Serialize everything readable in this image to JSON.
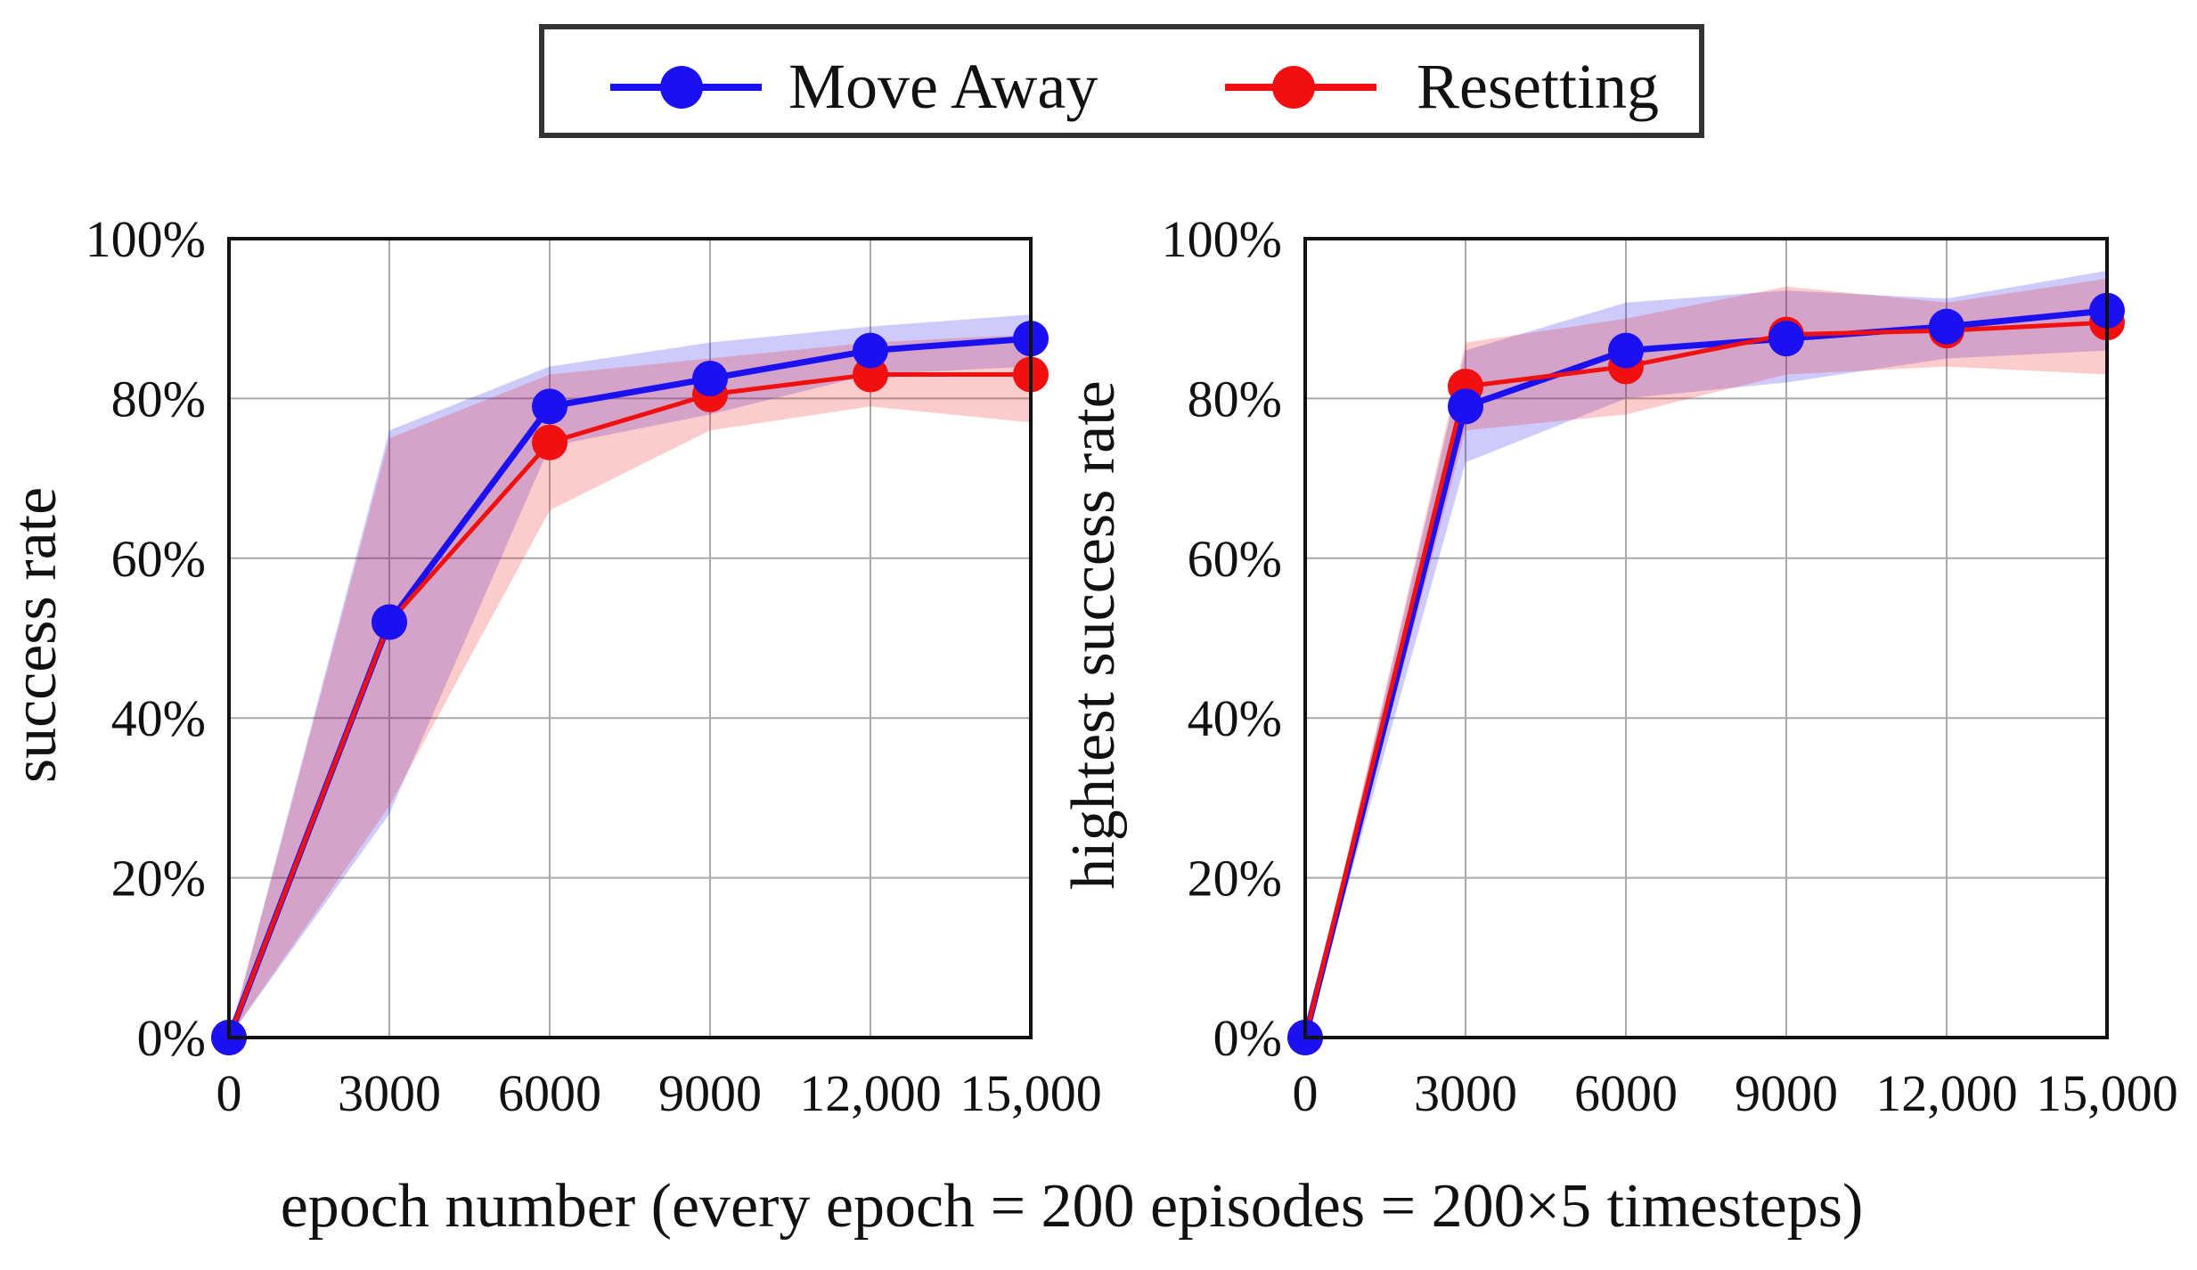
{
  "legend": {
    "series": [
      {
        "name": "Move Away",
        "color": "#1a10f0"
      },
      {
        "name": "Resetting",
        "color": "#f01010"
      }
    ]
  },
  "shared_xlabel": "epoch number (every epoch = 200 episodes = 200×5 timesteps)",
  "chart_data": [
    {
      "type": "line",
      "title": "",
      "xlabel": "epoch number (every epoch = 200 episodes = 200×5 timesteps)",
      "ylabel": "success rate",
      "x": [
        0,
        3000,
        6000,
        9000,
        12000,
        15000
      ],
      "x_tick_labels": [
        "0",
        "3000",
        "6000",
        "9000",
        "12,000",
        "15,000"
      ],
      "y_ticks": [
        0,
        20,
        40,
        60,
        80,
        100
      ],
      "y_tick_labels": [
        "0%",
        "20%",
        "40%",
        "60%",
        "80%",
        "100%"
      ],
      "xlim": [
        0,
        15000
      ],
      "ylim": [
        0,
        100
      ],
      "grid": true,
      "series": [
        {
          "name": "Move Away",
          "color": "#1a10f0",
          "values": [
            0,
            52,
            79,
            82.5,
            86,
            87.5
          ],
          "lower": [
            0,
            28,
            74,
            78,
            83,
            84
          ],
          "upper": [
            0,
            76,
            84,
            87,
            89,
            90.5
          ]
        },
        {
          "name": "Resetting",
          "color": "#f01010",
          "values": [
            0,
            52,
            74.5,
            80.5,
            83,
            83
          ],
          "lower": [
            0,
            29,
            66,
            76,
            79,
            77
          ],
          "upper": [
            0,
            75,
            83,
            85,
            87,
            88
          ]
        }
      ]
    },
    {
      "type": "line",
      "title": "",
      "xlabel": "epoch number (every epoch = 200 episodes = 200×5 timesteps)",
      "ylabel": "hightest success rate",
      "x": [
        0,
        3000,
        6000,
        9000,
        12000,
        15000
      ],
      "x_tick_labels": [
        "0",
        "3000",
        "6000",
        "9000",
        "12,000",
        "15,000"
      ],
      "y_ticks": [
        0,
        20,
        40,
        60,
        80,
        100
      ],
      "y_tick_labels": [
        "0%",
        "20%",
        "40%",
        "60%",
        "80%",
        "100%"
      ],
      "xlim": [
        0,
        15000
      ],
      "ylim": [
        0,
        100
      ],
      "grid": true,
      "series": [
        {
          "name": "Move Away",
          "color": "#1a10f0",
          "values": [
            0,
            79,
            86,
            87.5,
            89,
            91
          ],
          "lower": [
            0,
            72,
            80,
            82,
            85,
            86
          ],
          "upper": [
            0,
            86,
            92,
            93.5,
            92.5,
            96
          ]
        },
        {
          "name": "Resetting",
          "color": "#f01010",
          "values": [
            0,
            81.5,
            84,
            88,
            88.5,
            89.5
          ],
          "lower": [
            0,
            76,
            78,
            83,
            84,
            83
          ],
          "upper": [
            0,
            87,
            90,
            94,
            92,
            95
          ]
        }
      ]
    }
  ]
}
